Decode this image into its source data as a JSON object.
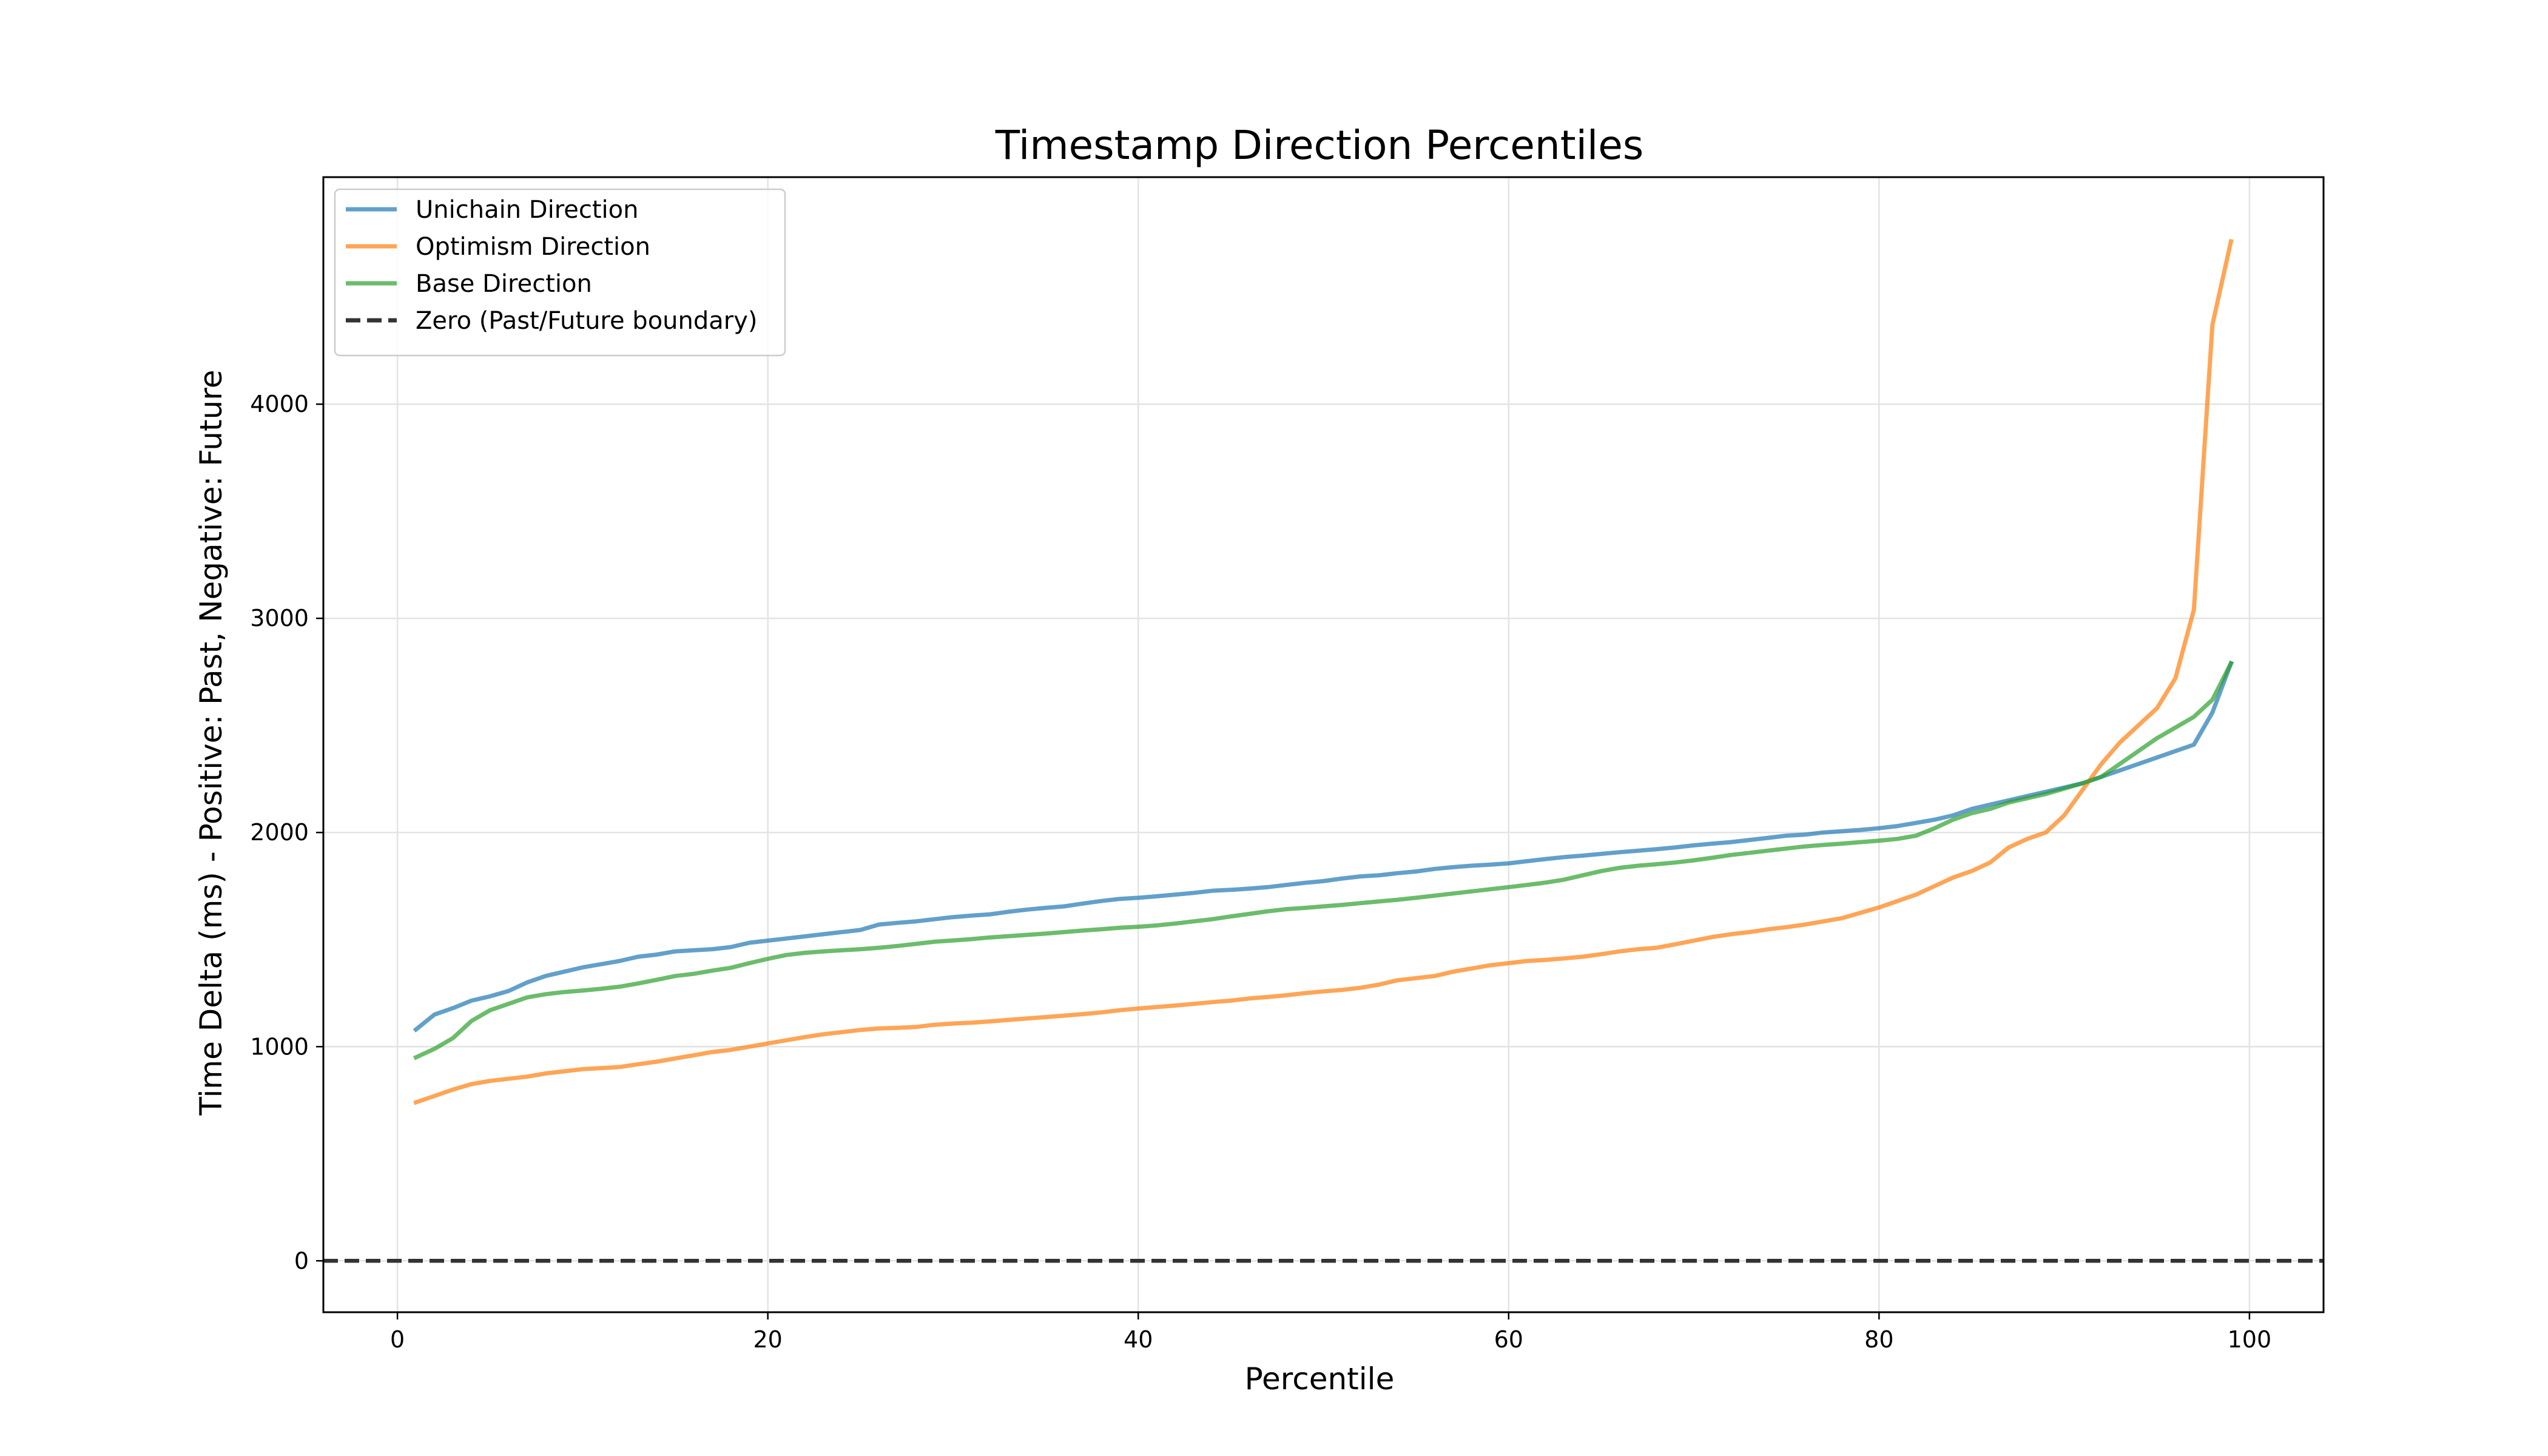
{
  "chart_data": {
    "type": "line",
    "title": "Timestamp Direction Percentiles",
    "xlabel": "Percentile",
    "ylabel": "Time Delta (ms) - Positive: Past, Negative: Future",
    "xlim": [
      -4,
      104
    ],
    "ylim": [
      -240,
      5060
    ],
    "xticks": [
      0,
      20,
      40,
      60,
      80,
      100
    ],
    "yticks": [
      0,
      1000,
      2000,
      3000,
      4000
    ],
    "grid": true,
    "legend_position": "top-left",
    "x": [
      1,
      2,
      3,
      4,
      5,
      6,
      7,
      8,
      9,
      10,
      11,
      12,
      13,
      14,
      15,
      16,
      17,
      18,
      19,
      20,
      21,
      22,
      23,
      24,
      25,
      26,
      27,
      28,
      29,
      30,
      31,
      32,
      33,
      34,
      35,
      36,
      37,
      38,
      39,
      40,
      41,
      42,
      43,
      44,
      45,
      46,
      47,
      48,
      49,
      50,
      51,
      52,
      53,
      54,
      55,
      56,
      57,
      58,
      59,
      60,
      61,
      62,
      63,
      64,
      65,
      66,
      67,
      68,
      69,
      70,
      71,
      72,
      73,
      74,
      75,
      76,
      77,
      78,
      79,
      80,
      81,
      82,
      83,
      84,
      85,
      86,
      87,
      88,
      89,
      90,
      91,
      92,
      93,
      94,
      95,
      96,
      97,
      98,
      99
    ],
    "series": [
      {
        "name": "Unichain Direction",
        "color": "#1f77b4",
        "dashed": false,
        "values": [
          1080,
          1150,
          1180,
          1215,
          1235,
          1260,
          1300,
          1330,
          1350,
          1370,
          1385,
          1400,
          1420,
          1430,
          1445,
          1450,
          1455,
          1465,
          1485,
          1495,
          1505,
          1515,
          1525,
          1535,
          1545,
          1570,
          1578,
          1585,
          1595,
          1605,
          1612,
          1618,
          1630,
          1640,
          1648,
          1655,
          1668,
          1680,
          1690,
          1695,
          1702,
          1710,
          1718,
          1728,
          1732,
          1738,
          1745,
          1755,
          1765,
          1773,
          1785,
          1795,
          1800,
          1810,
          1818,
          1830,
          1838,
          1845,
          1850,
          1856,
          1866,
          1876,
          1885,
          1892,
          1900,
          1908,
          1915,
          1922,
          1930,
          1940,
          1948,
          1955,
          1965,
          1975,
          1985,
          1990,
          2000,
          2006,
          2012,
          2020,
          2030,
          2045,
          2060,
          2080,
          2110,
          2130,
          2150,
          2170,
          2190,
          2210,
          2230,
          2260,
          2290,
          2320,
          2350,
          2380,
          2410,
          2560,
          2790
        ]
      },
      {
        "name": "Optimism Direction",
        "color": "#ff7f0e",
        "dashed": false,
        "values": [
          740,
          770,
          800,
          825,
          840,
          850,
          860,
          875,
          885,
          895,
          900,
          905,
          918,
          930,
          945,
          960,
          975,
          985,
          1000,
          1015,
          1030,
          1045,
          1058,
          1068,
          1078,
          1085,
          1088,
          1092,
          1102,
          1108,
          1112,
          1118,
          1125,
          1132,
          1138,
          1145,
          1152,
          1160,
          1170,
          1178,
          1185,
          1192,
          1200,
          1208,
          1215,
          1225,
          1232,
          1240,
          1250,
          1258,
          1265,
          1275,
          1290,
          1310,
          1320,
          1330,
          1350,
          1365,
          1380,
          1390,
          1400,
          1405,
          1412,
          1420,
          1432,
          1445,
          1455,
          1462,
          1478,
          1495,
          1512,
          1525,
          1535,
          1548,
          1558,
          1570,
          1585,
          1600,
          1625,
          1650,
          1680,
          1710,
          1750,
          1790,
          1820,
          1860,
          1930,
          1970,
          2000,
          2080,
          2200,
          2320,
          2420,
          2500,
          2580,
          2720,
          3040,
          4370,
          4760
        ]
      },
      {
        "name": "Base Direction",
        "color": "#2ca02c",
        "dashed": false,
        "values": [
          950,
          990,
          1040,
          1120,
          1170,
          1200,
          1230,
          1245,
          1255,
          1262,
          1270,
          1280,
          1295,
          1312,
          1330,
          1340,
          1355,
          1368,
          1390,
          1410,
          1428,
          1438,
          1445,
          1450,
          1455,
          1462,
          1470,
          1480,
          1490,
          1496,
          1502,
          1510,
          1516,
          1522,
          1528,
          1535,
          1542,
          1548,
          1555,
          1560,
          1566,
          1575,
          1585,
          1595,
          1608,
          1620,
          1632,
          1642,
          1648,
          1655,
          1662,
          1670,
          1678,
          1686,
          1695,
          1705,
          1715,
          1725,
          1735,
          1745,
          1755,
          1766,
          1780,
          1800,
          1820,
          1835,
          1845,
          1852,
          1860,
          1870,
          1882,
          1895,
          1905,
          1915,
          1925,
          1935,
          1942,
          1948,
          1955,
          1962,
          1970,
          1985,
          2020,
          2060,
          2090,
          2110,
          2140,
          2160,
          2180,
          2205,
          2230,
          2260,
          2320,
          2380,
          2440,
          2490,
          2540,
          2620,
          2790
        ]
      },
      {
        "name": "Zero (Past/Future boundary)",
        "color": "#333333",
        "dashed": true,
        "x": [
          -4,
          104
        ],
        "values": [
          0,
          0
        ]
      }
    ]
  }
}
